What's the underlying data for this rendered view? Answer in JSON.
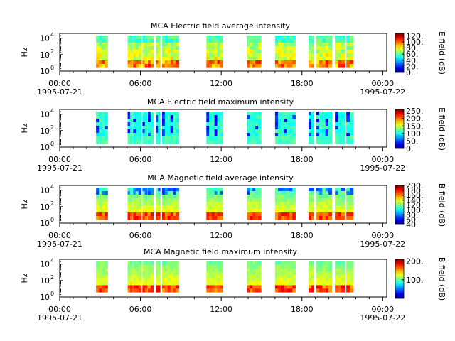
{
  "chart_data": [
    {
      "type": "heatmap",
      "title": "MCA  Electric field average intensity",
      "ylabel": "Hz",
      "y_ticks": [
        "10",
        "10",
        "10"
      ],
      "y_tick_exps": [
        "0",
        "2",
        "4"
      ],
      "x_ticks": [
        "00:00",
        "06:00",
        "12:00",
        "18:00",
        "00:00"
      ],
      "x_dates": [
        "1995-07-21",
        "1995-07-22"
      ],
      "colorbar_label": "E field (dB)",
      "colorbar_ticks": [
        "0.",
        "20.",
        "40.",
        "60.",
        "80.",
        "100.",
        "120."
      ],
      "colorbar_range": [
        0,
        128
      ],
      "style": "avg-e",
      "bottom_colors": [
        "#ff8a00",
        "#ffcc00",
        "#a0ff00",
        "#00ff40"
      ]
    },
    {
      "type": "heatmap",
      "title": "MCA  Electric field maximum intensity",
      "ylabel": "Hz",
      "y_ticks": [
        "10",
        "10",
        "10"
      ],
      "y_tick_exps": [
        "0",
        "2",
        "4"
      ],
      "x_ticks": [
        "00:00",
        "06:00",
        "12:00",
        "18:00",
        "00:00"
      ],
      "x_dates": [
        "1995-07-21",
        "1995-07-22"
      ],
      "colorbar_label": "E field (dB)",
      "colorbar_ticks": [
        "0.",
        "50.",
        "100.",
        "150.",
        "200.",
        "250."
      ],
      "colorbar_range": [
        0,
        260
      ],
      "style": "max-e",
      "bottom_colors": [
        "#00e8d0",
        "#00d8ff"
      ]
    },
    {
      "type": "heatmap",
      "title": "MCA  Magnetic field average intensity",
      "ylabel": "Hz",
      "y_ticks": [
        "10",
        "10",
        "10"
      ],
      "y_tick_exps": [
        "0",
        "2",
        "4"
      ],
      "x_ticks": [
        "00:00",
        "06:00",
        "12:00",
        "18:00",
        "00:00"
      ],
      "x_dates": [
        "1995-07-21",
        "1995-07-22"
      ],
      "colorbar_label": "B field (dB)",
      "colorbar_ticks": [
        "40.",
        "60.",
        "80.",
        "100.",
        "120.",
        "140.",
        "160.",
        "180.",
        "200."
      ],
      "colorbar_range": [
        40,
        200
      ],
      "style": "avg-b",
      "bottom_colors": [
        "#ffdd00",
        "#ff9900",
        "#c8ff00"
      ]
    },
    {
      "type": "heatmap",
      "title": "MCA  Magnetic field maximum intensity",
      "ylabel": "Hz",
      "y_ticks": [
        "10",
        "10",
        "10"
      ],
      "y_tick_exps": [
        "0",
        "2",
        "4"
      ],
      "x_ticks": [
        "00:00",
        "06:00",
        "12:00",
        "18:00",
        "00:00"
      ],
      "x_dates": [
        "1995-07-21",
        "1995-07-22"
      ],
      "colorbar_label": "B field (dB)",
      "colorbar_ticks": [
        "100.",
        "200."
      ],
      "colorbar_range": [
        0,
        210
      ],
      "style": "max-b",
      "bottom_colors": [
        "#ffee00",
        "#ff7700",
        "#aaff00"
      ]
    }
  ],
  "data_segments_hours": [
    [
      2.7,
      3.55
    ],
    [
      5.05,
      5.4
    ],
    [
      5.45,
      6.05
    ],
    [
      6.15,
      6.5
    ],
    [
      6.55,
      6.95
    ],
    [
      7.15,
      7.45
    ],
    [
      7.6,
      8.85
    ],
    [
      10.9,
      12.1
    ],
    [
      13.9,
      14.95
    ],
    [
      16.0,
      17.5
    ],
    [
      18.5,
      18.85
    ],
    [
      19.05,
      20.2
    ],
    [
      20.45,
      21.15
    ],
    [
      21.3,
      21.8
    ]
  ]
}
